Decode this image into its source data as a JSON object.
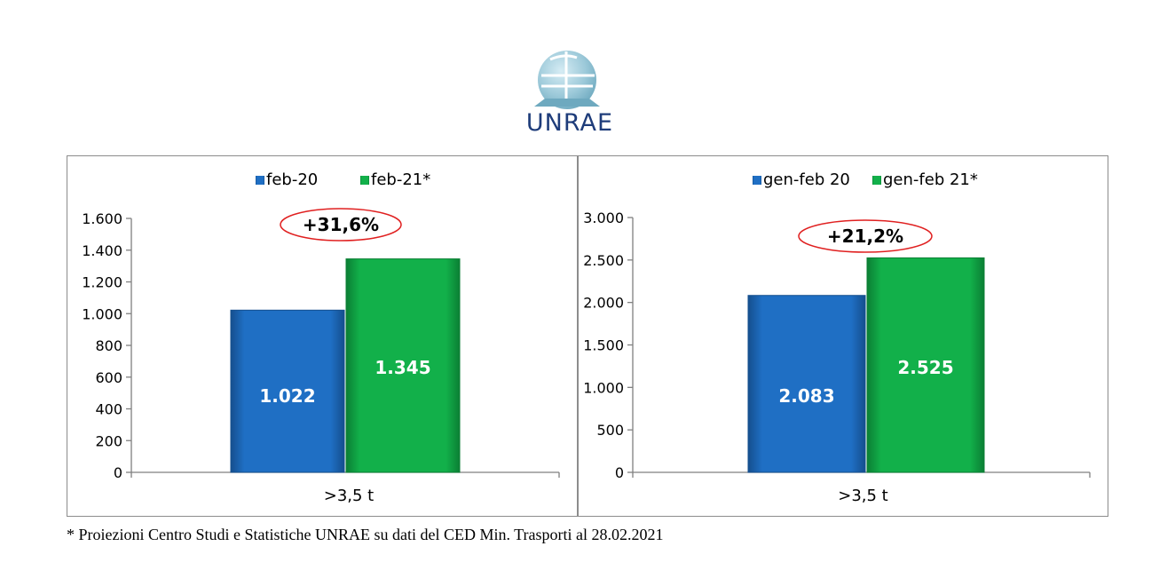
{
  "logo": {
    "text": "UNRAE"
  },
  "footnote": "* Proiezioni Centro Studi e Statistiche UNRAE su dati del CED Min. Trasporti al 28.02.2021",
  "colors": {
    "blue": "#1f6fc4",
    "green": "#12b04a",
    "annotation_ring": "#e02020"
  },
  "chart_data": [
    {
      "type": "bar",
      "categories": [
        ">3,5 t"
      ],
      "series": [
        {
          "name": "feb-20",
          "values": [
            1022
          ],
          "labels": [
            "1.022"
          ],
          "color": "#1f6fc4"
        },
        {
          "name": "feb-21*",
          "values": [
            1345
          ],
          "labels": [
            "1.345"
          ],
          "color": "#12b04a"
        }
      ],
      "ylim": [
        0,
        1600
      ],
      "yticks": [
        0,
        200,
        400,
        600,
        800,
        1000,
        1200,
        1400,
        1600
      ],
      "ytick_labels": [
        "0",
        "200",
        "400",
        "600",
        "800",
        "1.000",
        "1.200",
        "1.400",
        "1.600"
      ],
      "annotation": "+31,6%",
      "legend": "top",
      "grid": false
    },
    {
      "type": "bar",
      "categories": [
        ">3,5 t"
      ],
      "series": [
        {
          "name": "gen-feb 20",
          "values": [
            2083
          ],
          "labels": [
            "2.083"
          ],
          "color": "#1f6fc4"
        },
        {
          "name": "gen-feb 21*",
          "values": [
            2525
          ],
          "labels": [
            "2.525"
          ],
          "color": "#12b04a"
        }
      ],
      "ylim": [
        0,
        3000
      ],
      "yticks": [
        0,
        500,
        1000,
        1500,
        2000,
        2500,
        3000
      ],
      "ytick_labels": [
        "0",
        "500",
        "1.000",
        "1.500",
        "2.000",
        "2.500",
        "3.000"
      ],
      "annotation": "+21,2%",
      "legend": "top",
      "grid": false
    }
  ]
}
